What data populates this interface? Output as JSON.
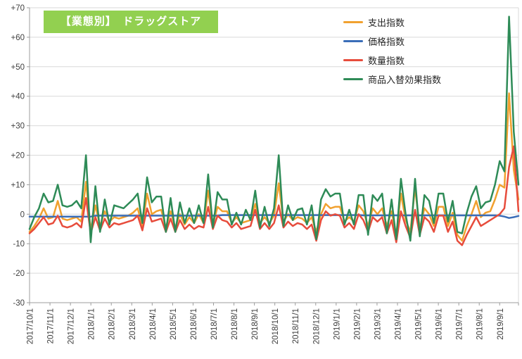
{
  "title": "【業態別】　ドラッグストア",
  "colors": {
    "background": "#FFFFFF",
    "title_bg": "#92D050",
    "title_text": "#FFFFFF",
    "grid": "#D9D9D9",
    "axis": "#9C9C9C",
    "label": "#404040",
    "legend_text": "#262626"
  },
  "chart_data": {
    "type": "line",
    "title": "【業態別】　ドラッグストア",
    "x_unit": "week",
    "x_start": "2017/10/1",
    "x_tick_labels": [
      "2017/10/1",
      "2017/11/1",
      "2017/12/1",
      "2018/1/1",
      "2018/2/1",
      "2018/3/1",
      "2018/4/1",
      "2018/5/1",
      "2018/6/1",
      "2018/7/1",
      "2018/8/1",
      "2018/9/1",
      "2018/10/1",
      "2018/11/1",
      "2018/12/1",
      "2019/1/1",
      "2019/2/1",
      "2019/3/1",
      "2019/4/1",
      "2019/5/1",
      "2019/6/1",
      "2019/7/1",
      "2019/8/1",
      "2019/9/1"
    ],
    "ylim": [
      -30,
      70
    ],
    "y_tick_step": 10,
    "y_tick_labels": [
      "+70",
      "+60",
      "+50",
      "+40",
      "+30",
      "+20",
      "+10",
      "0",
      "-10",
      "-20",
      "-30"
    ],
    "grid": "horizontal",
    "legend_position": "top-right",
    "series": [
      {
        "name": "支出指数",
        "color": "#F1A12F",
        "values": [
          -6,
          -4,
          -1.5,
          2,
          -1.5,
          -1,
          4.5,
          -1.5,
          -2,
          -1.5,
          -1,
          -2.5,
          11,
          -5.5,
          3,
          -4,
          1,
          -2.5,
          -1,
          -1.5,
          -1,
          -0.5,
          0.5,
          2,
          -4,
          7,
          0,
          1,
          1.5,
          -4.5,
          1,
          -4.5,
          0,
          -3.5,
          -1,
          -3,
          0,
          -3,
          8,
          -3.5,
          2.5,
          1,
          1,
          -3,
          -1,
          -3,
          -2.5,
          -2,
          3.5,
          -3,
          -1,
          -3,
          -0.5,
          10.5,
          -2.5,
          0,
          -2,
          -1,
          -1.5,
          -3,
          -1,
          -6,
          0,
          3.5,
          2,
          2.5,
          2.5,
          -2.5,
          -1,
          -2.5,
          3,
          1,
          -4,
          2,
          0,
          2,
          -4,
          1,
          -7,
          7,
          -2,
          -6,
          9,
          -5,
          2,
          0,
          -4,
          2.5,
          2.5,
          -4,
          0.5,
          -7,
          -9,
          -4,
          0,
          4.5,
          -1,
          0.5,
          1,
          5,
          10,
          9,
          41,
          15,
          5
        ]
      },
      {
        "name": "価格指数",
        "color": "#3A6DB8",
        "values": [
          -0.8,
          -0.8,
          -0.8,
          -0.8,
          -0.8,
          -0.8,
          -0.8,
          -0.8,
          -0.8,
          -0.8,
          -0.8,
          -0.8,
          -0.8,
          -0.8,
          -0.5,
          -0.5,
          -0.5,
          -0.5,
          -0.5,
          -0.5,
          -0.5,
          -0.5,
          -0.5,
          -0.5,
          -0.5,
          -0.5,
          -0.5,
          -0.5,
          -0.5,
          -0.5,
          -0.5,
          -0.5,
          -0.5,
          -0.5,
          -0.5,
          -0.5,
          -0.5,
          -0.5,
          -0.5,
          -0.5,
          -0.5,
          -0.3,
          -0.3,
          -0.3,
          -0.3,
          -0.3,
          -0.3,
          -0.3,
          -0.3,
          -0.3,
          -0.3,
          -0.3,
          -0.3,
          -0.3,
          -0.3,
          -0.3,
          -0.3,
          -0.3,
          -0.3,
          -0.3,
          -0.3,
          -0.3,
          -0.3,
          -0.3,
          -0.3,
          -0.3,
          -0.3,
          -0.3,
          -0.3,
          -0.3,
          -0.3,
          -0.4,
          -0.4,
          -0.4,
          -0.4,
          -0.4,
          -0.4,
          -0.4,
          -0.4,
          -0.4,
          -0.4,
          -0.4,
          -0.4,
          -0.4,
          -0.4,
          -0.4,
          -0.4,
          -0.4,
          -0.4,
          -0.4,
          -0.4,
          -0.4,
          -0.4,
          -0.4,
          -0.4,
          -0.4,
          -0.4,
          -0.4,
          -0.4,
          -0.4,
          -0.5,
          -0.8,
          -1.3,
          -1,
          -0.6
        ]
      },
      {
        "name": "数量指数",
        "color": "#E74C3C",
        "values": [
          -6.5,
          -5,
          -3,
          -1,
          -3.5,
          -3,
          -0.5,
          -4,
          -4.5,
          -4,
          -3,
          -4.5,
          5.5,
          -6.5,
          -1,
          -5.5,
          -1.5,
          -4.5,
          -3,
          -3.5,
          -3,
          -2.5,
          -2,
          -0.5,
          -5.5,
          2,
          -2.5,
          -2,
          -1.5,
          -6,
          -1.5,
          -6,
          -2,
          -5,
          -3.5,
          -5,
          -4,
          -4.5,
          2.5,
          -5,
          -0.5,
          -2,
          -2.5,
          -4.5,
          -3,
          -5,
          -4.5,
          -4,
          1.5,
          -5,
          -3,
          -5,
          -3,
          3,
          -4.5,
          -2.5,
          -4,
          -3,
          -3.5,
          -5,
          -3.5,
          -9,
          -2,
          1,
          -0.5,
          0,
          -0.5,
          -4.5,
          -3,
          -5,
          0,
          -2,
          -6,
          -1,
          -2.5,
          -1,
          -6.5,
          -2,
          -9.5,
          1,
          -4,
          -8,
          1.5,
          -7,
          -1,
          -2.5,
          -6,
          -0.5,
          -0.5,
          -6,
          -2.5,
          -9,
          -10.5,
          -7,
          -4,
          -1,
          -4,
          -3,
          -2,
          -1,
          0,
          2,
          16,
          23,
          1
        ]
      },
      {
        "name": "商品入替効果指数",
        "color": "#2E8B57",
        "values": [
          -5,
          -1,
          2,
          7,
          4,
          4.5,
          10,
          3,
          2.5,
          3,
          4.5,
          2,
          20,
          -9.5,
          9.5,
          -6,
          5,
          -3.5,
          3,
          2.5,
          2,
          3.5,
          5,
          7,
          -3,
          12.5,
          4,
          6,
          6,
          -6,
          5.5,
          -6,
          4,
          -3,
          2,
          -3,
          3,
          -3,
          13.5,
          -4.5,
          7.5,
          5,
          5,
          -3.5,
          0.5,
          -3.5,
          1.5,
          -2,
          8,
          -4.5,
          2.5,
          -4,
          2,
          20,
          -4,
          3,
          -2,
          1.5,
          2,
          -3.5,
          3,
          -8.5,
          5,
          8.5,
          6,
          7,
          7,
          -3.5,
          1.5,
          -3.5,
          6.5,
          6.5,
          -7,
          6.5,
          4.5,
          7,
          -6.5,
          5,
          -8.5,
          12,
          0,
          -9,
          12,
          -7.5,
          6.5,
          4.5,
          -3,
          7,
          7,
          -2.5,
          4.5,
          -6,
          -6.5,
          0.5,
          6,
          9.5,
          2,
          4,
          4.5,
          10,
          18,
          14.5,
          67,
          28,
          10
        ]
      }
    ]
  }
}
